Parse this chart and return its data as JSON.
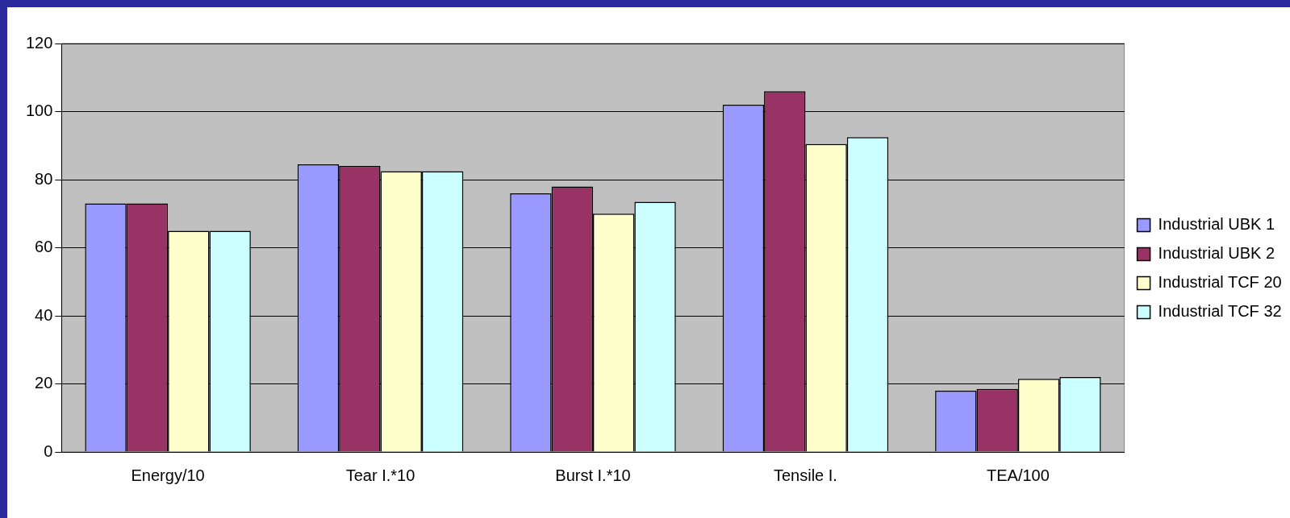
{
  "chart_data": {
    "type": "bar",
    "categories": [
      "Energy/10",
      "Tear I.*10",
      "Burst I.*10",
      "Tensile I.",
      "TEA/100"
    ],
    "series": [
      {
        "name": "Industrial UBK 1",
        "color": "#9999ff",
        "values": [
          73,
          84.5,
          76,
          102,
          18
        ]
      },
      {
        "name": "Industrial UBK 2",
        "color": "#993366",
        "values": [
          73,
          84,
          78,
          106,
          18.5
        ]
      },
      {
        "name": "Industrial TCF 20",
        "color": "#ffffcc",
        "values": [
          65,
          82.5,
          70,
          90.5,
          21.5
        ]
      },
      {
        "name": "Industrial TCF 32",
        "color": "#ccffff",
        "values": [
          65,
          82.5,
          73.5,
          92.5,
          22
        ]
      }
    ],
    "ylim": [
      0,
      120
    ],
    "yticks": [
      0,
      20,
      40,
      60,
      80,
      100,
      120
    ],
    "grid": "y",
    "legend": "right"
  }
}
